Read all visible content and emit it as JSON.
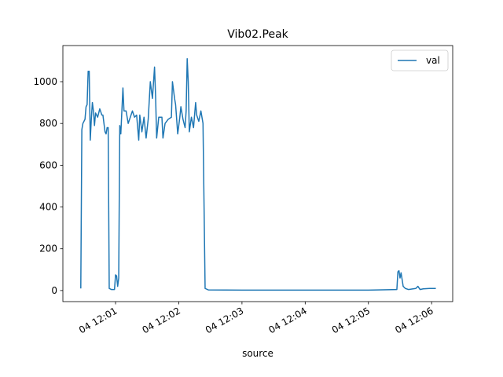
{
  "chart_data": {
    "type": "line",
    "title": "Vib02.Peak",
    "xlabel": "source",
    "x": [
      "04 12:00:27",
      "04 12:00:28",
      "04 12:00:29",
      "04 12:00:31",
      "04 12:00:32",
      "04 12:00:33",
      "04 12:00:34",
      "04 12:00:35",
      "04 12:00:36",
      "04 12:00:37",
      "04 12:00:38",
      "04 12:00:39",
      "04 12:00:40",
      "04 12:00:41",
      "04 12:00:43",
      "04 12:00:45",
      "04 12:00:47",
      "04 12:00:48",
      "04 12:00:50",
      "04 12:00:51",
      "04 12:00:52",
      "04 12:00:53",
      "04 12:00:54",
      "04 12:00:56",
      "04 12:00:59",
      "04 12:01:00",
      "04 12:01:01",
      "04 12:01:02",
      "04 12:01:03",
      "04 12:01:04",
      "04 12:01:05",
      "04 12:01:07",
      "04 12:01:08",
      "04 12:01:10",
      "04 12:01:12",
      "04 12:01:14",
      "04 12:01:16",
      "04 12:01:18",
      "04 12:01:20",
      "04 12:01:22",
      "04 12:01:23",
      "04 12:01:25",
      "04 12:01:27",
      "04 12:01:29",
      "04 12:01:31",
      "04 12:01:33",
      "04 12:01:35",
      "04 12:01:37",
      "04 12:01:38",
      "04 12:01:39",
      "04 12:01:41",
      "04 12:01:44",
      "04 12:01:45",
      "04 12:01:47",
      "04 12:01:50",
      "04 12:01:53",
      "04 12:01:54",
      "04 12:01:56",
      "04 12:01:57",
      "04 12:01:59",
      "04 12:02:01",
      "04 12:02:02",
      "04 12:02:04",
      "04 12:02:06",
      "04 12:02:07",
      "04 12:02:08",
      "04 12:02:09",
      "04 12:02:10",
      "04 12:02:12",
      "04 12:02:14",
      "04 12:02:16",
      "04 12:02:17",
      "04 12:02:19",
      "04 12:02:21",
      "04 12:02:23",
      "04 12:02:25",
      "04 12:02:28",
      "04 12:03:00",
      "04 12:04:00",
      "04 12:05:00",
      "04 12:05:27",
      "04 12:05:28",
      "04 12:05:29",
      "04 12:05:30",
      "04 12:05:31",
      "04 12:05:33",
      "04 12:05:35",
      "04 12:05:38",
      "04 12:05:45",
      "04 12:05:47",
      "04 12:05:49",
      "04 12:05:52",
      "04 12:05:58",
      "04 12:06:04"
    ],
    "series": [
      {
        "name": "val",
        "color": "#1f77b4",
        "values": [
          10,
          770,
          800,
          820,
          880,
          890,
          1050,
          1050,
          720,
          820,
          900,
          860,
          790,
          850,
          830,
          870,
          840,
          840,
          760,
          750,
          780,
          780,
          10,
          5,
          5,
          75,
          70,
          20,
          60,
          790,
          750,
          970,
          860,
          860,
          800,
          830,
          860,
          830,
          840,
          720,
          840,
          760,
          830,
          730,
          820,
          1000,
          920,
          1070,
          930,
          730,
          830,
          830,
          730,
          800,
          820,
          830,
          1000,
          920,
          890,
          750,
          830,
          880,
          820,
          780,
          860,
          1110,
          1000,
          760,
          830,
          780,
          900,
          840,
          810,
          860,
          800,
          10,
          3,
          2,
          2,
          2,
          5,
          90,
          95,
          60,
          85,
          20,
          10,
          5,
          10,
          20,
          5,
          8,
          10,
          10
        ]
      }
    ],
    "xlim": [
      "04 12:00:10",
      "04 12:06:20"
    ],
    "xticks": [
      "04 12:01",
      "04 12:02",
      "04 12:03",
      "04 12:04",
      "04 12:05",
      "04 12:06"
    ],
    "ylim": [
      -53,
      1173
    ],
    "yticks": [
      0,
      200,
      400,
      600,
      800,
      1000
    ],
    "legend": "upper right",
    "grid": false
  }
}
